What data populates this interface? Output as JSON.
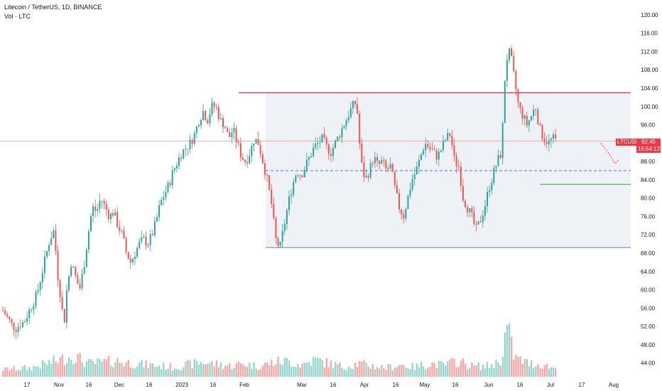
{
  "header": {
    "title": "Litecoin / TetherUS, 1D, BINANCE",
    "volume_label": "Vol · LTC"
  },
  "price_tag": {
    "symbol": "LTCUSDT",
    "value": "92.45",
    "countdown": "15:54:12"
  },
  "colors": {
    "up": "#26a69a",
    "down": "#ef5350",
    "vol_up": "#8fd3c9",
    "vol_down": "#f5a3a3",
    "resistance": "#e0365a",
    "support_line": "#6f7fd8",
    "mid_dashed": "#5b73e8",
    "green_level": "#4caf50",
    "range_fill": "#eef1f5",
    "last_price_line": "#f7a9a9"
  },
  "chart_data": {
    "type": "candlestick",
    "title": "Litecoin / TetherUS, 1D, BINANCE",
    "y_axis_ticks": [
      120,
      116,
      112,
      108,
      104,
      100,
      96,
      92,
      88,
      84,
      80,
      76,
      72,
      68,
      64,
      60,
      56,
      52,
      48,
      44
    ],
    "y_range": [
      41,
      122
    ],
    "x_axis_labels": [
      "17",
      "Nov",
      "16",
      "Dec",
      "16",
      "2023",
      "16",
      "Feb",
      "Mar",
      "16",
      "Apr",
      "16",
      "May",
      "16",
      "Jun",
      "16",
      "Jul",
      "17",
      "Aug"
    ],
    "last_price": 92.45,
    "levels": {
      "resistance": 103,
      "range_top": 103,
      "range_mid_dashed": 86,
      "range_bottom": 69.2,
      "green_support": 83
    },
    "projection": [
      {
        "x": "Jul 26",
        "y": 92
      },
      {
        "x": "Jul 29",
        "y": 90
      },
      {
        "x": "Aug 1",
        "y": 87.5
      },
      {
        "x": "Aug 2",
        "y": 88.5
      }
    ],
    "price_path": [
      [
        0,
        55.5
      ],
      [
        6,
        54
      ],
      [
        12,
        52.5
      ],
      [
        18,
        51.5
      ],
      [
        24,
        52.5
      ],
      [
        30,
        53
      ],
      [
        36,
        55
      ],
      [
        42,
        57
      ],
      [
        48,
        59
      ],
      [
        54,
        63
      ],
      [
        60,
        67
      ],
      [
        66,
        71
      ],
      [
        72,
        73
      ],
      [
        78,
        62
      ],
      [
        82,
        58
      ],
      [
        86,
        52
      ],
      [
        90,
        60
      ],
      [
        96,
        66
      ],
      [
        102,
        63
      ],
      [
        108,
        60
      ],
      [
        114,
        65
      ],
      [
        120,
        72
      ],
      [
        126,
        78
      ],
      [
        132,
        77
      ],
      [
        138,
        80
      ],
      [
        144,
        78
      ],
      [
        150,
        76
      ],
      [
        156,
        77
      ],
      [
        162,
        74
      ],
      [
        168,
        72
      ],
      [
        174,
        68
      ],
      [
        180,
        66
      ],
      [
        186,
        68
      ],
      [
        192,
        70
      ],
      [
        198,
        71
      ],
      [
        204,
        70
      ],
      [
        210,
        72
      ],
      [
        216,
        75
      ],
      [
        222,
        79
      ],
      [
        228,
        81
      ],
      [
        234,
        83
      ],
      [
        240,
        86
      ],
      [
        246,
        88
      ],
      [
        252,
        90
      ],
      [
        258,
        91
      ],
      [
        264,
        92
      ],
      [
        270,
        94
      ],
      [
        276,
        97
      ],
      [
        282,
        99
      ],
      [
        288,
        97
      ],
      [
        294,
        100
      ],
      [
        300,
        100
      ],
      [
        306,
        97
      ],
      [
        312,
        96
      ],
      [
        318,
        93
      ],
      [
        324,
        95
      ],
      [
        330,
        92
      ],
      [
        336,
        89
      ],
      [
        342,
        88
      ],
      [
        348,
        90
      ],
      [
        354,
        93
      ],
      [
        360,
        92
      ],
      [
        366,
        88
      ],
      [
        372,
        84
      ],
      [
        378,
        79
      ],
      [
        384,
        71
      ],
      [
        390,
        69
      ],
      [
        396,
        74
      ],
      [
        402,
        79
      ],
      [
        408,
        83
      ],
      [
        414,
        86
      ],
      [
        420,
        85
      ],
      [
        426,
        87
      ],
      [
        432,
        89
      ],
      [
        438,
        91
      ],
      [
        444,
        92
      ],
      [
        450,
        93
      ],
      [
        456,
        91
      ],
      [
        462,
        90
      ],
      [
        468,
        92
      ],
      [
        474,
        94
      ],
      [
        480,
        96
      ],
      [
        486,
        98
      ],
      [
        492,
        100
      ],
      [
        498,
        101
      ],
      [
        504,
        88
      ],
      [
        510,
        84
      ],
      [
        516,
        86
      ],
      [
        522,
        89
      ],
      [
        528,
        87
      ],
      [
        534,
        88
      ],
      [
        540,
        86
      ],
      [
        546,
        87
      ],
      [
        552,
        82
      ],
      [
        558,
        78
      ],
      [
        564,
        76
      ],
      [
        570,
        80
      ],
      [
        576,
        84
      ],
      [
        582,
        86
      ],
      [
        588,
        89
      ],
      [
        594,
        92
      ],
      [
        600,
        91
      ],
      [
        606,
        90
      ],
      [
        612,
        89
      ],
      [
        618,
        91
      ],
      [
        624,
        93
      ],
      [
        630,
        94
      ],
      [
        636,
        88
      ],
      [
        642,
        87
      ],
      [
        648,
        80
      ],
      [
        654,
        78
      ],
      [
        660,
        76
      ],
      [
        666,
        73
      ],
      [
        672,
        75
      ],
      [
        678,
        78
      ],
      [
        684,
        82
      ],
      [
        690,
        85
      ],
      [
        696,
        88
      ],
      [
        702,
        90
      ],
      [
        708,
        110
      ],
      [
        714,
        112
      ],
      [
        720,
        106
      ],
      [
        726,
        100
      ],
      [
        732,
        98
      ],
      [
        738,
        96
      ],
      [
        744,
        98
      ],
      [
        750,
        100
      ],
      [
        756,
        95
      ],
      [
        762,
        93
      ],
      [
        768,
        92
      ],
      [
        774,
        93
      ],
      [
        780,
        92.45
      ]
    ],
    "volume_path": [
      [
        0,
        1.2
      ],
      [
        40,
        1.5
      ],
      [
        80,
        2.8
      ],
      [
        100,
        3.5
      ],
      [
        120,
        2.2
      ],
      [
        160,
        2.6
      ],
      [
        200,
        2.0
      ],
      [
        240,
        1.6
      ],
      [
        280,
        2.4
      ],
      [
        320,
        1.8
      ],
      [
        340,
        2.2
      ],
      [
        360,
        1.7
      ],
      [
        380,
        2.4
      ],
      [
        400,
        2.6
      ],
      [
        420,
        2.0
      ],
      [
        440,
        2.8
      ],
      [
        460,
        2.2
      ],
      [
        480,
        1.6
      ],
      [
        500,
        2.2
      ],
      [
        520,
        1.8
      ],
      [
        540,
        1.5
      ],
      [
        560,
        2.0
      ],
      [
        580,
        1.6
      ],
      [
        600,
        2.2
      ],
      [
        620,
        1.9
      ],
      [
        640,
        2.6
      ],
      [
        660,
        1.8
      ],
      [
        680,
        1.7
      ],
      [
        700,
        2.5
      ],
      [
        710,
        8.2
      ],
      [
        720,
        3.2
      ],
      [
        740,
        2.2
      ],
      [
        760,
        2.0
      ],
      [
        780,
        1.3
      ]
    ]
  }
}
